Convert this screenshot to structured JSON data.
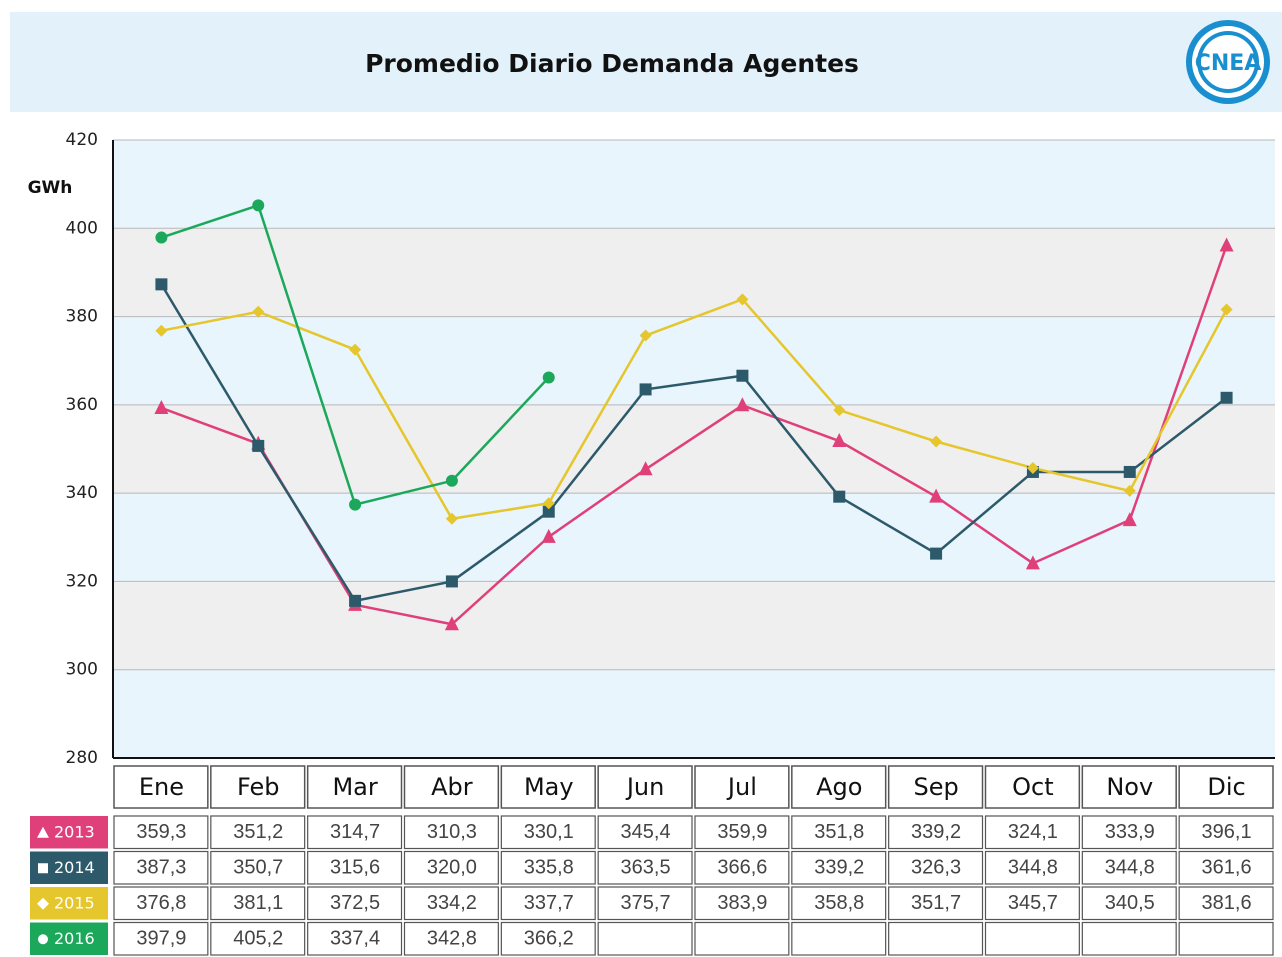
{
  "chart_data": {
    "type": "line",
    "title": "Promedio Diario Demanda Agentes",
    "logo": "CNEA",
    "y_label": "GWh",
    "categories": [
      "Ene",
      "Feb",
      "Mar",
      "Abr",
      "May",
      "Jun",
      "Jul",
      "Ago",
      "Sep",
      "Oct",
      "Nov",
      "Dic"
    ],
    "ylim": [
      280,
      420
    ],
    "yticks": [
      280,
      300,
      320,
      340,
      360,
      380,
      400,
      420
    ],
    "grid": true,
    "series": [
      {
        "name": "2013",
        "color": "#e0407a",
        "marker": "triangle",
        "values": [
          359.3,
          351.2,
          314.7,
          310.3,
          330.1,
          345.4,
          359.9,
          351.8,
          339.2,
          324.1,
          333.9,
          396.1
        ],
        "value_labels": [
          "359,3",
          "351,2",
          "314,7",
          "310,3",
          "330,1",
          "345,4",
          "359,9",
          "351,8",
          "339,2",
          "324,1",
          "333,9",
          "396,1"
        ]
      },
      {
        "name": "2014",
        "color": "#2d5a6a",
        "marker": "square",
        "values": [
          387.3,
          350.7,
          315.6,
          320.0,
          335.8,
          363.5,
          366.6,
          339.2,
          326.3,
          344.8,
          344.8,
          361.6
        ],
        "value_labels": [
          "387,3",
          "350,7",
          "315,6",
          "320,0",
          "335,8",
          "363,5",
          "366,6",
          "339,2",
          "326,3",
          "344,8",
          "344,8",
          "361,6"
        ]
      },
      {
        "name": "2015",
        "color": "#e5c62c",
        "marker": "diamond",
        "values": [
          376.8,
          381.1,
          372.5,
          334.2,
          337.7,
          375.7,
          383.9,
          358.8,
          351.7,
          345.7,
          340.5,
          381.6
        ],
        "value_labels": [
          "376,8",
          "381,1",
          "372,5",
          "334,2",
          "337,7",
          "375,7",
          "383,9",
          "358,8",
          "351,7",
          "345,7",
          "340,5",
          "381,6"
        ]
      },
      {
        "name": "2016",
        "color": "#1ca85a",
        "marker": "circle",
        "values": [
          397.9,
          405.2,
          337.4,
          342.8,
          366.2,
          null,
          null,
          null,
          null,
          null,
          null,
          null
        ],
        "value_labels": [
          "397,9",
          "405,2",
          "337,4",
          "342,8",
          "366,2",
          null,
          null,
          null,
          null,
          null,
          null,
          null
        ]
      }
    ]
  }
}
